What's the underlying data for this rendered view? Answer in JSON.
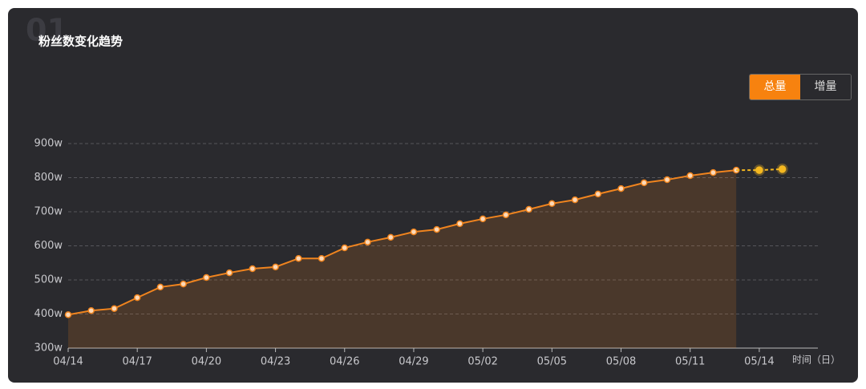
{
  "badge": "01",
  "buttons": [
    "总量",
    "增量"
  ],
  "chart_data": {
    "type": "line",
    "title": "粉丝数变化趋势",
    "x_label": "时间（日）",
    "categories": [
      "04/14",
      null,
      null,
      "04/17",
      null,
      null,
      "04/20",
      null,
      null,
      "04/23",
      null,
      null,
      "04/26",
      null,
      null,
      "04/29",
      null,
      null,
      "05/02",
      null,
      null,
      "05/05",
      null,
      null,
      "05/08",
      null,
      null,
      "05/11",
      null,
      null,
      "05/14",
      null
    ],
    "series": [
      {
        "color": "#f0841e",
        "area": true,
        "dashed": false,
        "values": [
          398,
          410,
          416,
          448,
          479,
          488,
          507,
          521,
          533,
          538,
          563,
          563,
          594,
          611,
          625,
          641,
          648,
          665,
          679,
          691,
          707,
          724,
          735,
          752,
          768,
          785,
          794,
          806,
          815,
          822,
          null,
          null
        ]
      },
      {
        "color": "#f5b820",
        "area": false,
        "dashed": true,
        "values": [
          null,
          null,
          null,
          null,
          null,
          null,
          null,
          null,
          null,
          null,
          null,
          null,
          null,
          null,
          null,
          null,
          null,
          null,
          null,
          null,
          null,
          null,
          null,
          null,
          null,
          null,
          null,
          null,
          null,
          null,
          822,
          825
        ]
      }
    ],
    "ylim": [
      300,
      900
    ],
    "yticks": [
      {
        "value": 300,
        "label": "300w"
      },
      {
        "value": 400,
        "label": "400w"
      },
      {
        "value": 500,
        "label": "500w"
      },
      {
        "value": 600,
        "label": "600w"
      },
      {
        "value": 700,
        "label": "700w"
      },
      {
        "value": 800,
        "label": "800w"
      },
      {
        "value": 900,
        "label": "900w"
      }
    ],
    "grid": true
  }
}
